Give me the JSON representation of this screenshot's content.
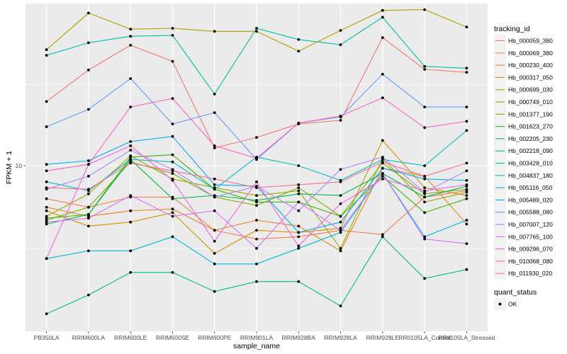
{
  "chart_data": {
    "type": "line",
    "xlabel": "sample_name",
    "ylabel": "FPKM + 1",
    "y_scale": "log10",
    "ylim": [
      2.7,
      36
    ],
    "y_ticks": [
      {
        "value": 10,
        "label": "10"
      }
    ],
    "grid": true,
    "legend_position": "right",
    "categories": [
      "PB350LA",
      "RRIM600LA",
      "RRIM600LE",
      "RRIM600SE",
      "RRIM600PE",
      "RRIM901LA",
      "RRIM928BA",
      "RRIM928LA",
      "RRIM928LE",
      "RRII105LA_Control",
      "RRII105LA_Stressed"
    ],
    "legend_title": "tracking_id",
    "series": [
      {
        "name": "Hb_000059_380",
        "color": "#F8766D",
        "values": [
          16.6,
          21.3,
          25.9,
          22.8,
          11.5,
          12.5,
          13.9,
          14.3,
          27.5,
          21.4,
          20.9
        ]
      },
      {
        "name": "Hb_000069_380",
        "color": "#F27D53",
        "values": [
          7.7,
          7.2,
          7.8,
          7.8,
          6.0,
          5.6,
          5.7,
          6.0,
          5.8,
          7.8,
          8.2
        ]
      },
      {
        "name": "Hb_000230_400",
        "color": "#E6861E",
        "values": [
          7.2,
          6.7,
          7.0,
          7.1,
          6.0,
          6.5,
          6.2,
          5.1,
          9.8,
          9.2,
          6.3
        ]
      },
      {
        "name": "Hb_000317_050",
        "color": "#D39200",
        "values": [
          7.0,
          6.2,
          6.4,
          6.9,
          5.0,
          6.0,
          5.9,
          6.1,
          12.2,
          8.4,
          7.9
        ]
      },
      {
        "name": "Hb_000699_030",
        "color": "#B79F00",
        "values": [
          25.0,
          33.4,
          29.4,
          29.6,
          28.9,
          28.9,
          24.7,
          29.1,
          34.1,
          34.3,
          29.9
        ]
      },
      {
        "name": "Hb_000749_010",
        "color": "#9CA700",
        "values": [
          6.7,
          8.0,
          10.8,
          9.0,
          8.4,
          7.9,
          8.2,
          5.2,
          10.6,
          7.5,
          8.1
        ]
      },
      {
        "name": "Hb_001377_190",
        "color": "#7CAE00",
        "values": [
          6.5,
          7.2,
          10.3,
          9.4,
          7.8,
          7.3,
          8.4,
          6.7,
          10.2,
          8.0,
          8.3
        ]
      },
      {
        "name": "Hb_001623_270",
        "color": "#39B600",
        "values": [
          6.6,
          6.8,
          10.7,
          10.9,
          8.3,
          7.5,
          7.5,
          6.7,
          9.2,
          6.9,
          7.7
        ]
      },
      {
        "name": "Hb_002205_230",
        "color": "#00BB4E",
        "values": [
          6.3,
          6.8,
          10.5,
          7.7,
          7.9,
          7.6,
          8.0,
          7.9,
          9.4,
          7.8,
          8.5
        ]
      },
      {
        "name": "Hb_002218_090",
        "color": "#00BF7D",
        "values": [
          3.1,
          3.6,
          4.3,
          4.3,
          3.7,
          4.0,
          4.0,
          3.3,
          5.7,
          4.1,
          4.4
        ]
      },
      {
        "name": "Hb_003428_010",
        "color": "#00C1A3",
        "values": [
          23.9,
          26.4,
          27.8,
          28.0,
          17.6,
          29.6,
          27.1,
          26.0,
          32.3,
          21.9,
          21.6
        ]
      },
      {
        "name": "Hb_004837_180",
        "color": "#00BFC4",
        "values": [
          8.8,
          8.2,
          10.5,
          10.3,
          8.3,
          10.7,
          10.0,
          8.9,
          10.5,
          10.0,
          13.2
        ]
      },
      {
        "name": "Hb_005116_050",
        "color": "#00B9E3",
        "values": [
          4.8,
          5.1,
          5.1,
          5.7,
          4.6,
          4.6,
          5.2,
          5.9,
          9.4,
          5.7,
          6.5
        ]
      },
      {
        "name": "Hb_005489_020",
        "color": "#00ADFA",
        "values": [
          10.1,
          10.4,
          12.1,
          12.6,
          8.6,
          8.5,
          5.9,
          6.4,
          9.8,
          9.0,
          8.9
        ]
      },
      {
        "name": "Hb_005588_080",
        "color": "#619CFF",
        "values": [
          13.6,
          15.6,
          19.9,
          13.9,
          15.2,
          10.5,
          14.0,
          14.7,
          20.6,
          15.9,
          15.9
        ]
      },
      {
        "name": "Hb_007007_120",
        "color": "#AE87FF",
        "values": [
          8.3,
          9.2,
          11.3,
          9.7,
          7.8,
          8.5,
          7.0,
          9.7,
          10.7,
          8.1,
          9.6
        ]
      },
      {
        "name": "Hb_007765_100",
        "color": "#DB72FB",
        "values": [
          6.4,
          6.6,
          7.9,
          6.7,
          7.0,
          5.2,
          7.5,
          6.0,
          9.4,
          5.6,
          5.4
        ]
      },
      {
        "name": "Hb_009296_070",
        "color": "#F564E3",
        "values": [
          4.8,
          10.1,
          11.7,
          8.9,
          5.5,
          8.8,
          5.3,
          7.4,
          9.0,
          8.2,
          8.6
        ]
      },
      {
        "name": "Hb_010068_080",
        "color": "#FF61C3",
        "values": [
          9.6,
          10.1,
          15.9,
          17.0,
          11.7,
          10.6,
          14.0,
          14.8,
          17.1,
          13.5,
          14.2
        ]
      },
      {
        "name": "Hb_011930_020",
        "color": "#FF6C91",
        "values": [
          8.4,
          8.3,
          10.2,
          9.6,
          9.0,
          8.4,
          8.6,
          8.8,
          10.3,
          9.2,
          10.2
        ]
      }
    ],
    "shape_legend": {
      "title": "quant_status",
      "items": [
        {
          "label": "OK"
        }
      ]
    }
  },
  "colors": {
    "panel_background": "#EBEBEB",
    "grid_major": "#FFFFFF",
    "point": "#000000"
  }
}
